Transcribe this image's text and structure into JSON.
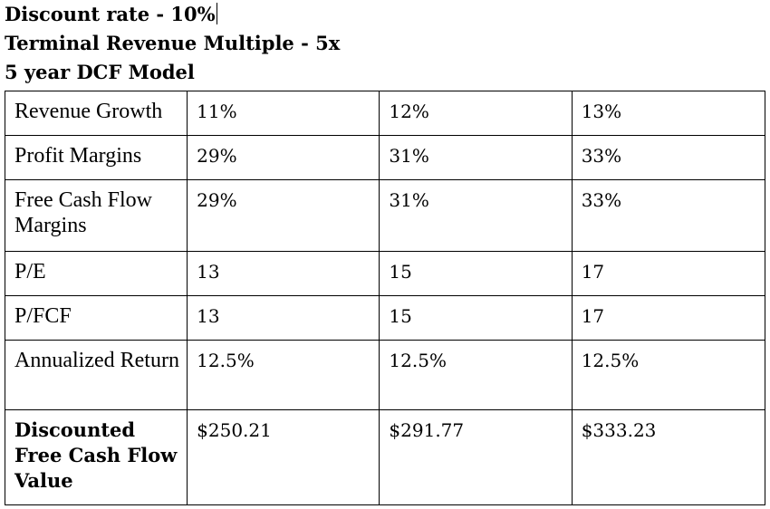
{
  "headings": {
    "discount_rate": "Discount rate - 10%",
    "terminal_multiple": "Terminal Revenue Multiple - 5x",
    "model_title": "5 year DCF Model"
  },
  "table": {
    "rows": [
      {
        "label": "Revenue Growth",
        "values": [
          "11%",
          "12%",
          "13%"
        ]
      },
      {
        "label": "Profit Margins",
        "values": [
          "29%",
          "31%",
          "33%"
        ]
      },
      {
        "label": "Free Cash Flow Margins",
        "values": [
          "29%",
          "31%",
          "33%"
        ]
      },
      {
        "label": "P/E",
        "values": [
          "13",
          "15",
          "17"
        ]
      },
      {
        "label": "P/FCF",
        "values": [
          "13",
          "15",
          "17"
        ]
      },
      {
        "label": "Annualized Return",
        "values": [
          "12.5%",
          "12.5%",
          "12.5%"
        ]
      },
      {
        "label": "Discounted Free Cash Flow Value",
        "values": [
          "$250.21",
          "$291.77",
          "$333.23"
        ]
      }
    ]
  }
}
